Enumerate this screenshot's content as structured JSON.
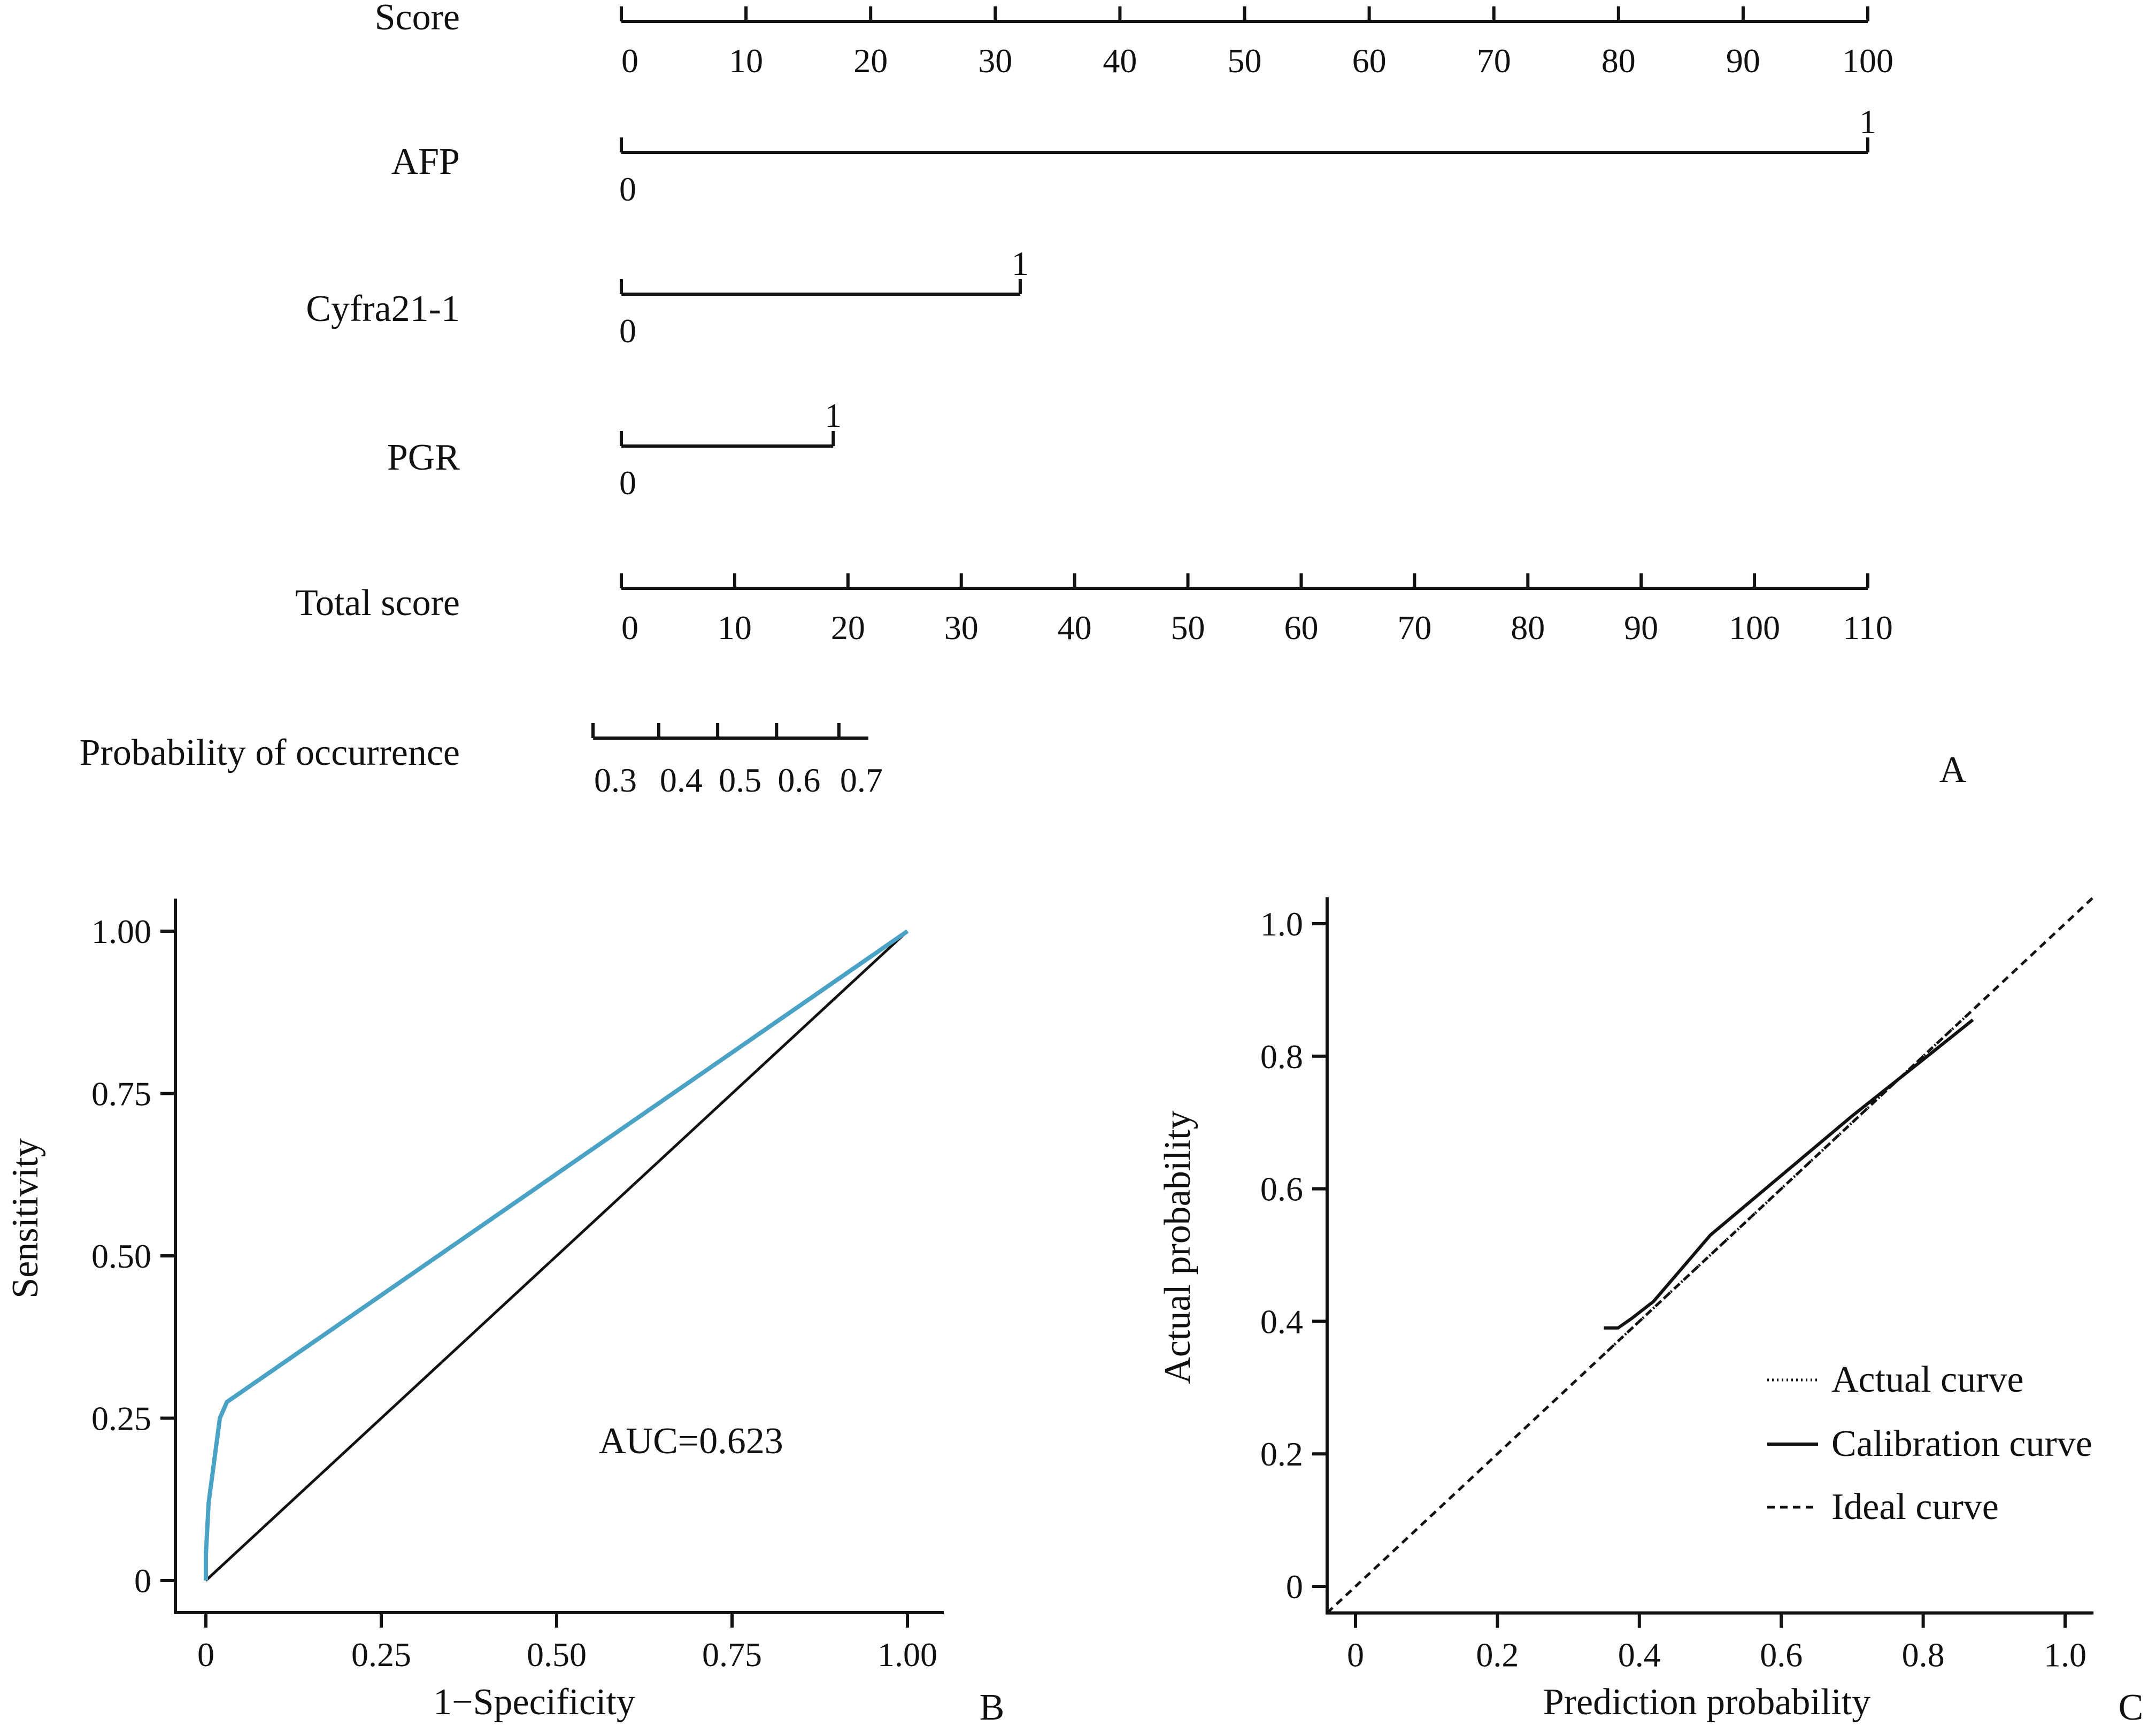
{
  "colors": {
    "ink": "#111111",
    "roc_curve": "#4AA3C4",
    "background": "#ffffff"
  },
  "panels": {
    "a": "A",
    "b": "B",
    "c": "C"
  },
  "chart_data": [
    {
      "type": "nomogram",
      "panel": "A",
      "rows": [
        {
          "label": "Score",
          "kind": "axis",
          "ticks": [
            "0",
            "10",
            "20",
            "30",
            "40",
            "50",
            "60",
            "70",
            "80",
            "90",
            "100"
          ],
          "range": [
            0,
            100
          ]
        },
        {
          "label": "AFP",
          "kind": "bar",
          "min_label": "0",
          "max_label": "1",
          "points": 100
        },
        {
          "label": "Cyfra21-1",
          "kind": "bar",
          "min_label": "0",
          "max_label": "1",
          "points": 32
        },
        {
          "label": "PGR",
          "kind": "bar",
          "min_label": "0",
          "max_label": "1",
          "points": 17
        },
        {
          "label": "Total score",
          "kind": "axis",
          "ticks": [
            "0",
            "10",
            "20",
            "30",
            "40",
            "50",
            "60",
            "70",
            "80",
            "90",
            "100",
            "110"
          ],
          "range": [
            0,
            110
          ]
        },
        {
          "label": "Probability of occurrence",
          "kind": "probability",
          "ticks": [
            "0.3",
            "0.4",
            "0.5",
            "0.6",
            "0.7"
          ],
          "total_score_at_ticks": [
            -2.5,
            3.3,
            8.5,
            13.7,
            19.2
          ],
          "axis_end_total_score": 21.8
        }
      ]
    },
    {
      "type": "line",
      "panel": "B",
      "xlabel": "1−Specificity",
      "ylabel": "Sensitivity",
      "xlim": [
        0,
        1
      ],
      "ylim": [
        0,
        1
      ],
      "xticks": [
        "0",
        "0.25",
        "0.50",
        "0.75",
        "1.00"
      ],
      "yticks": [
        "0",
        "0.25",
        "0.50",
        "0.75",
        "1.00"
      ],
      "annotation": "AUC=0.623",
      "series": [
        {
          "name": "ROC",
          "x": [
            0.0,
            0.0,
            0.004,
            0.02,
            0.03,
            1.0
          ],
          "y": [
            0.0,
            0.04,
            0.12,
            0.25,
            0.275,
            1.0
          ]
        },
        {
          "name": "Reference",
          "x": [
            0,
            1
          ],
          "y": [
            0,
            1
          ]
        }
      ]
    },
    {
      "type": "line",
      "panel": "C",
      "xlabel": "Prediction probability",
      "ylabel": "Actual probability",
      "xlim": [
        -0.04,
        1.04
      ],
      "ylim": [
        -0.04,
        1.04
      ],
      "xticks": [
        "0",
        "0.2",
        "0.4",
        "0.6",
        "0.8",
        "1.0"
      ],
      "yticks": [
        "0",
        "0.2",
        "0.4",
        "0.6",
        "0.8",
        "1.0"
      ],
      "legend": [
        "Actual curve",
        "Calibration curve",
        "Ideal curve"
      ],
      "series": [
        {
          "name": "Actual curve",
          "x": [
            0.35,
            0.4,
            0.5,
            0.6,
            0.7,
            0.8,
            0.87
          ],
          "y": [
            0.35,
            0.4,
            0.5,
            0.6,
            0.7,
            0.8,
            0.87
          ]
        },
        {
          "name": "Calibration curve",
          "x": [
            0.35,
            0.37,
            0.39,
            0.42,
            0.46,
            0.5,
            0.55,
            0.6,
            0.7,
            0.8,
            0.87
          ],
          "y": [
            0.39,
            0.39,
            0.405,
            0.43,
            0.48,
            0.53,
            0.575,
            0.62,
            0.71,
            0.795,
            0.855
          ]
        },
        {
          "name": "Ideal curve",
          "x": [
            -0.04,
            1.04
          ],
          "y": [
            -0.04,
            1.04
          ]
        }
      ]
    }
  ]
}
